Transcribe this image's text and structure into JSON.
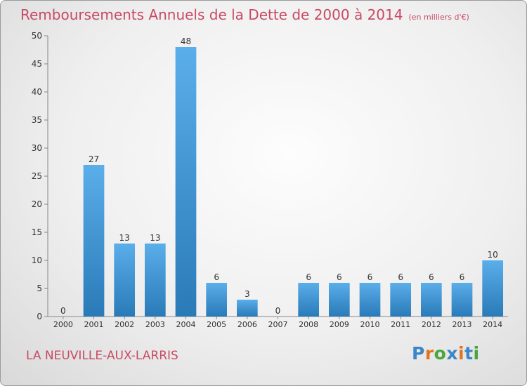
{
  "title": "Remboursements Annuels de la Dette de 2000 à 2014",
  "subtitle": "(en milliers d'€)",
  "commune": "LA NEUVILLE-AUX-LARRIS",
  "brand": "Proxiti",
  "chart_data": {
    "type": "bar",
    "title": "Remboursements Annuels de la Dette de 2000 à 2014",
    "subtitle": "(en milliers d'€)",
    "categories": [
      "2000",
      "2001",
      "2002",
      "2003",
      "2004",
      "2005",
      "2006",
      "2007",
      "2008",
      "2009",
      "2010",
      "2011",
      "2012",
      "2013",
      "2014"
    ],
    "values": [
      0,
      27,
      13,
      13,
      48,
      6,
      3,
      0,
      6,
      6,
      6,
      6,
      6,
      6,
      10
    ],
    "ylim": [
      0,
      50
    ],
    "yticks": [
      0,
      5,
      10,
      15,
      20,
      25,
      30,
      35,
      40,
      45,
      50
    ],
    "grid": false,
    "legend": "none",
    "colors": {
      "bar_top": "#5aaeea",
      "bar_bottom": "#2a7ab8",
      "title": "#c94a63"
    }
  }
}
